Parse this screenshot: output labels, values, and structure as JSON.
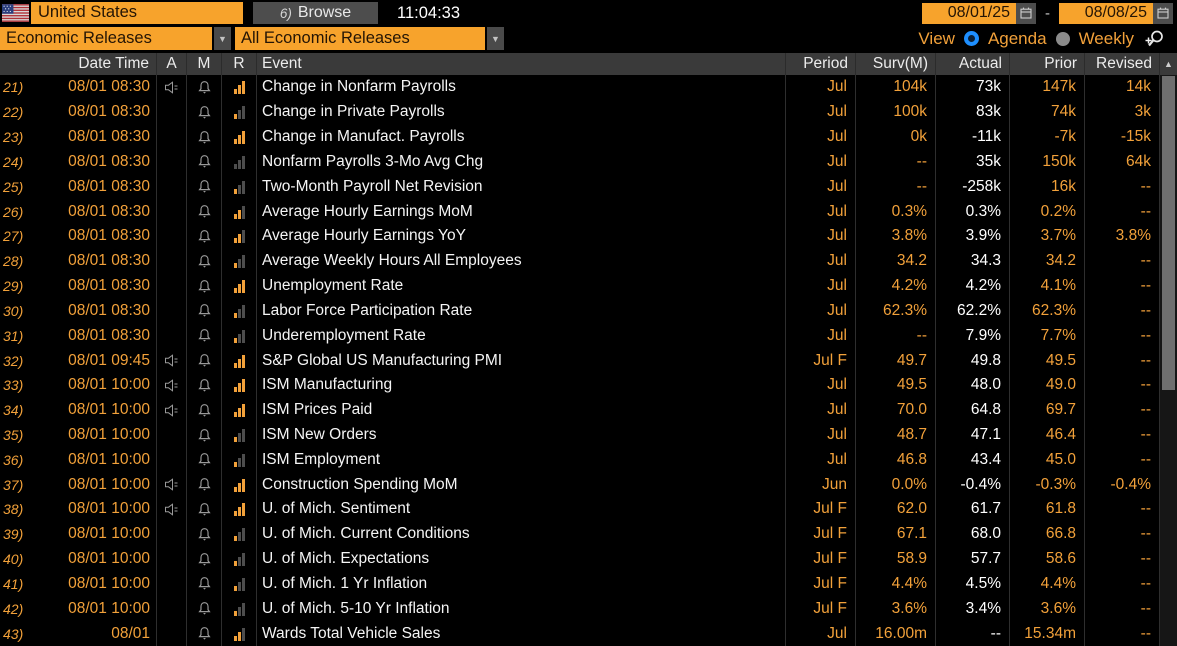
{
  "toolbar": {
    "country": "United States",
    "browse_number": "6)",
    "browse_label": "Browse",
    "time": "11:04:33",
    "date_from": "08/01/25",
    "date_separator": "-",
    "date_to": "08/08/25"
  },
  "filters": {
    "primary": "Economic Releases",
    "secondary": "All Economic Releases"
  },
  "view": {
    "label": "View",
    "options": [
      {
        "label": "Agenda",
        "selected": true
      },
      {
        "label": "Weekly",
        "selected": false
      }
    ]
  },
  "table": {
    "columns": [
      "Date Time",
      "A",
      "M",
      "R",
      "Event",
      "Period",
      "Surv(M)",
      "Actual",
      "Prior",
      "Revised"
    ],
    "sort_indicator": "▲",
    "rows": [
      {
        "num": "21)",
        "date": "08/01 08:30",
        "audio": true,
        "bars": 3,
        "event": "Change in Nonfarm Payrolls",
        "period": "Jul",
        "surv": "104k",
        "actual": "73k",
        "prior": "147k",
        "revised": "14k"
      },
      {
        "num": "22)",
        "date": "08/01 08:30",
        "audio": false,
        "bars": 1,
        "event": "Change in Private Payrolls",
        "period": "Jul",
        "surv": "100k",
        "actual": "83k",
        "prior": "74k",
        "revised": "3k"
      },
      {
        "num": "23)",
        "date": "08/01 08:30",
        "audio": false,
        "bars": 3,
        "event": "Change in Manufact. Payrolls",
        "period": "Jul",
        "surv": "0k",
        "actual": "-11k",
        "prior": "-7k",
        "revised": "-15k"
      },
      {
        "num": "24)",
        "date": "08/01 08:30",
        "audio": false,
        "bars": 0,
        "event": "Nonfarm Payrolls 3-Mo Avg Chg",
        "period": "Jul",
        "surv": "--",
        "actual": "35k",
        "prior": "150k",
        "revised": "64k"
      },
      {
        "num": "25)",
        "date": "08/01 08:30",
        "audio": false,
        "bars": 1,
        "event": "Two-Month Payroll Net Revision",
        "period": "Jul",
        "surv": "--",
        "actual": "-258k",
        "prior": "16k",
        "revised": "--"
      },
      {
        "num": "26)",
        "date": "08/01 08:30",
        "audio": false,
        "bars": 2,
        "event": "Average Hourly Earnings MoM",
        "period": "Jul",
        "surv": "0.3%",
        "actual": "0.3%",
        "prior": "0.2%",
        "revised": "--"
      },
      {
        "num": "27)",
        "date": "08/01 08:30",
        "audio": false,
        "bars": 2,
        "event": "Average Hourly Earnings YoY",
        "period": "Jul",
        "surv": "3.8%",
        "actual": "3.9%",
        "prior": "3.7%",
        "revised": "3.8%"
      },
      {
        "num": "28)",
        "date": "08/01 08:30",
        "audio": false,
        "bars": 1,
        "event": "Average Weekly Hours All Employees",
        "period": "Jul",
        "surv": "34.2",
        "actual": "34.3",
        "prior": "34.2",
        "revised": "--"
      },
      {
        "num": "29)",
        "date": "08/01 08:30",
        "audio": false,
        "bars": 3,
        "event": "Unemployment Rate",
        "period": "Jul",
        "surv": "4.2%",
        "actual": "4.2%",
        "prior": "4.1%",
        "revised": "--"
      },
      {
        "num": "30)",
        "date": "08/01 08:30",
        "audio": false,
        "bars": 1,
        "event": "Labor Force Participation Rate",
        "period": "Jul",
        "surv": "62.3%",
        "actual": "62.2%",
        "prior": "62.3%",
        "revised": "--"
      },
      {
        "num": "31)",
        "date": "08/01 08:30",
        "audio": false,
        "bars": 1,
        "event": "Underemployment Rate",
        "period": "Jul",
        "surv": "--",
        "actual": "7.9%",
        "prior": "7.7%",
        "revised": "--"
      },
      {
        "num": "32)",
        "date": "08/01 09:45",
        "audio": true,
        "bars": 3,
        "event": "S&P Global US Manufacturing PMI",
        "period": "Jul F",
        "surv": "49.7",
        "actual": "49.8",
        "prior": "49.5",
        "revised": "--"
      },
      {
        "num": "33)",
        "date": "08/01 10:00",
        "audio": true,
        "bars": 3,
        "event": "ISM Manufacturing",
        "period": "Jul",
        "surv": "49.5",
        "actual": "48.0",
        "prior": "49.0",
        "revised": "--"
      },
      {
        "num": "34)",
        "date": "08/01 10:00",
        "audio": true,
        "bars": 3,
        "event": "ISM Prices Paid",
        "period": "Jul",
        "surv": "70.0",
        "actual": "64.8",
        "prior": "69.7",
        "revised": "--"
      },
      {
        "num": "35)",
        "date": "08/01 10:00",
        "audio": false,
        "bars": 1,
        "event": "ISM New Orders",
        "period": "Jul",
        "surv": "48.7",
        "actual": "47.1",
        "prior": "46.4",
        "revised": "--"
      },
      {
        "num": "36)",
        "date": "08/01 10:00",
        "audio": false,
        "bars": 1,
        "event": "ISM Employment",
        "period": "Jul",
        "surv": "46.8",
        "actual": "43.4",
        "prior": "45.0",
        "revised": "--"
      },
      {
        "num": "37)",
        "date": "08/01 10:00",
        "audio": true,
        "bars": 3,
        "event": "Construction Spending MoM",
        "period": "Jun",
        "surv": "0.0%",
        "actual": "-0.4%",
        "prior": "-0.3%",
        "revised": "-0.4%"
      },
      {
        "num": "38)",
        "date": "08/01 10:00",
        "audio": true,
        "bars": 3,
        "event": "U. of Mich. Sentiment",
        "period": "Jul F",
        "surv": "62.0",
        "actual": "61.7",
        "prior": "61.8",
        "revised": "--"
      },
      {
        "num": "39)",
        "date": "08/01 10:00",
        "audio": false,
        "bars": 1,
        "event": "U. of Mich. Current Conditions",
        "period": "Jul F",
        "surv": "67.1",
        "actual": "68.0",
        "prior": "66.8",
        "revised": "--"
      },
      {
        "num": "40)",
        "date": "08/01 10:00",
        "audio": false,
        "bars": 1,
        "event": "U. of Mich. Expectations",
        "period": "Jul F",
        "surv": "58.9",
        "actual": "57.7",
        "prior": "58.6",
        "revised": "--"
      },
      {
        "num": "41)",
        "date": "08/01 10:00",
        "audio": false,
        "bars": 1,
        "event": "U. of Mich. 1 Yr Inflation",
        "period": "Jul F",
        "surv": "4.4%",
        "actual": "4.5%",
        "prior": "4.4%",
        "revised": "--"
      },
      {
        "num": "42)",
        "date": "08/01 10:00",
        "audio": false,
        "bars": 1,
        "event": "U. of Mich. 5-10 Yr Inflation",
        "period": "Jul F",
        "surv": "3.6%",
        "actual": "3.4%",
        "prior": "3.6%",
        "revised": "--"
      },
      {
        "num": "43)",
        "date": "08/01",
        "audio": false,
        "bars": 2,
        "event": "Wards Total Vehicle Sales",
        "period": "Jul",
        "surv": "16.00m",
        "actual": "--",
        "prior": "15.34m",
        "revised": "--"
      }
    ]
  },
  "colors": {
    "amber": "#f2a13a",
    "field_orange": "#f7a32c",
    "field_text": "#241505",
    "header_bg": "#3a3a3a",
    "radio_blue": "#1e8fff",
    "bar_orange": "#f2a13a",
    "bar_gray": "#4d4d4d",
    "icon_gray": "#9a9a9a",
    "actual_text": "#ffffff"
  }
}
